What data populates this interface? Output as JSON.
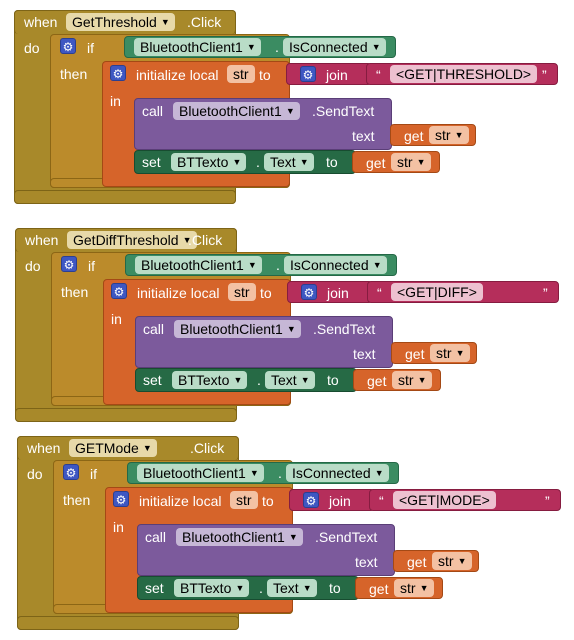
{
  "handlers": [
    {
      "when": "when",
      "event_component": "GetThreshold",
      "event_name": ".Click",
      "do": "do",
      "if": "if",
      "then": "then",
      "in": "in",
      "bt_component": "BluetoothClient1",
      "dot1": ".",
      "is_connected": "IsConnected",
      "initialize_local": "initialize local",
      "var_name": "str",
      "to": "to",
      "join": "join",
      "open_quote": "“",
      "text_value": "<GET|THRESHOLD>",
      "close_quote": "”",
      "call": "call",
      "method": ".SendText",
      "text_label": "text",
      "get": "get",
      "get_var": "str",
      "set": "set",
      "target": "BTTexto",
      "dot2": ".",
      "prop": "Text",
      "set_to": "to",
      "get2": "get",
      "get_var2": "str"
    },
    {
      "when": "when",
      "event_component": "GetDiffThreshold",
      "event_name": ".Click",
      "do": "do",
      "if": "if",
      "then": "then",
      "in": "in",
      "bt_component": "BluetoothClient1",
      "dot1": ".",
      "is_connected": "IsConnected",
      "initialize_local": "initialize local",
      "var_name": "str",
      "to": "to",
      "join": "join",
      "open_quote": "“",
      "text_value": "<GET|DIFF>",
      "close_quote": "”",
      "call": "call",
      "method": ".SendText",
      "text_label": "text",
      "get": "get",
      "get_var": "str",
      "set": "set",
      "target": "BTTexto",
      "dot2": ".",
      "prop": "Text",
      "set_to": "to",
      "get2": "get",
      "get_var2": "str"
    },
    {
      "when": "when",
      "event_component": "GETMode",
      "event_name": ".Click",
      "do": "do",
      "if": "if",
      "then": "then",
      "in": "in",
      "bt_component": "BluetoothClient1",
      "dot1": ".",
      "is_connected": "IsConnected",
      "initialize_local": "initialize local",
      "var_name": "str",
      "to": "to",
      "join": "join",
      "open_quote": "“",
      "text_value": "<GET|MODE>",
      "close_quote": "”",
      "call": "call",
      "method": ".SendText",
      "text_label": "text",
      "get": "get",
      "get_var": "str",
      "set": "set",
      "target": "BTTexto",
      "dot2": ".",
      "prop": "Text",
      "set_to": "to",
      "get2": "get",
      "get_var2": "str"
    }
  ],
  "icons": {
    "mutator": "gear-icon",
    "dropdown": "chevron-down-icon"
  },
  "colors": {
    "event": "#a8892a",
    "control": "#bb8b2b",
    "variable": "#d6642a",
    "component": "#3b8c62",
    "text": "#b52e5b",
    "procedure": "#7c5a9c",
    "mutator": "#3e57c2"
  }
}
